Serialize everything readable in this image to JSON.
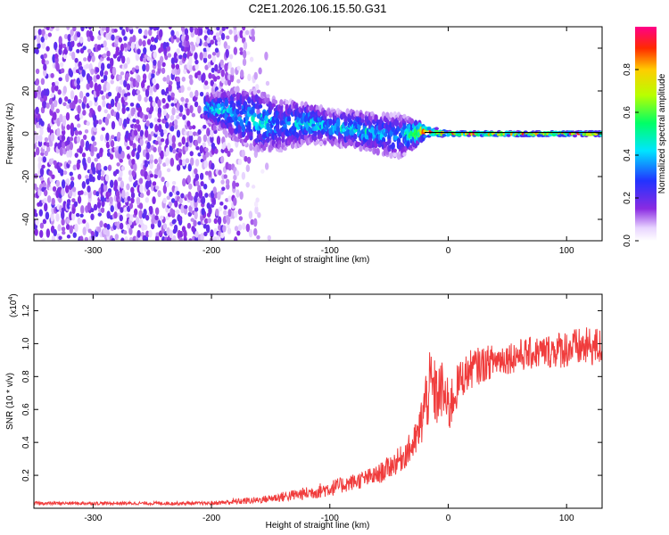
{
  "figure": {
    "title": "C2E1.2026.106.15.50.G31"
  },
  "chart_data": [
    {
      "type": "heatmap",
      "title": "C2E1.2026.106.15.50.G31",
      "xlabel": "Height of straight line (km)",
      "ylabel": "Frequency (Hz)",
      "xlim": [
        -350,
        130
      ],
      "ylim": [
        -50,
        50
      ],
      "xticks": [
        -300,
        -200,
        -100,
        0,
        100
      ],
      "yticks": [
        -40,
        -20,
        0,
        20,
        40
      ],
      "colorbar": {
        "label": "Normalized spectral amplitude",
        "range": [
          0,
          1
        ],
        "ticks": [
          0.0,
          0.2,
          0.4,
          0.6,
          0.8
        ],
        "tick_labels": [
          "0.0",
          "0.2",
          "0.4",
          "0.6",
          "0.8"
        ]
      },
      "signal_track": {
        "description_points_x": [
          -200,
          -180,
          -160,
          -140,
          -120,
          -100,
          -80,
          -60,
          -40,
          -20,
          0,
          50,
          100,
          130
        ],
        "center_frequency": [
          12,
          9,
          6,
          4,
          5,
          3,
          2,
          0,
          -1,
          1,
          0,
          0,
          0,
          0
        ],
        "spread": [
          6,
          12,
          14,
          12,
          9,
          8,
          8,
          9,
          10,
          3,
          1,
          1,
          1,
          1
        ],
        "peak_amplitude": [
          0.45,
          0.4,
          0.45,
          0.35,
          0.45,
          0.4,
          0.45,
          0.4,
          0.35,
          0.85,
          0.9,
          0.9,
          0.85,
          0.9
        ]
      },
      "noise_region": {
        "x_from": -350,
        "x_to": -150,
        "amplitude": 0.2
      }
    },
    {
      "type": "line",
      "xlabel": "Height of straight line (km)",
      "ylabel": "SNR (10 * v/v)",
      "multiplier_label": "(x10",
      "multiplier_exponent": "4",
      "multiplier_close": ")",
      "xlim": [
        -350,
        130
      ],
      "ylim": [
        0,
        1.3
      ],
      "xticks": [
        -300,
        -200,
        -100,
        0,
        100
      ],
      "yticks": [
        0.2,
        0.4,
        0.6,
        0.8,
        1.0,
        1.2
      ],
      "ytick_labels": [
        "0.2",
        "0.4",
        "0.6",
        "0.8",
        "1.0",
        "1.2"
      ],
      "color": "#f03c3c",
      "series": [
        {
          "name": "SNR",
          "x": [
            -350,
            -300,
            -250,
            -200,
            -180,
            -160,
            -140,
            -120,
            -100,
            -80,
            -60,
            -40,
            -30,
            -25,
            -20,
            -15,
            -10,
            -5,
            0,
            10,
            20,
            40,
            60,
            80,
            100,
            120,
            130
          ],
          "y": [
            0.03,
            0.03,
            0.03,
            0.03,
            0.04,
            0.05,
            0.07,
            0.09,
            0.12,
            0.16,
            0.2,
            0.3,
            0.38,
            0.45,
            0.62,
            0.75,
            0.68,
            0.72,
            0.6,
            0.78,
            0.85,
            0.9,
            0.93,
            0.95,
            0.97,
            0.98,
            0.98
          ],
          "noise": [
            0.01,
            0.01,
            0.01,
            0.01,
            0.02,
            0.02,
            0.03,
            0.04,
            0.05,
            0.05,
            0.06,
            0.08,
            0.1,
            0.12,
            0.2,
            0.22,
            0.2,
            0.18,
            0.18,
            0.12,
            0.12,
            0.1,
            0.1,
            0.1,
            0.12,
            0.12,
            0.12
          ]
        }
      ]
    }
  ]
}
